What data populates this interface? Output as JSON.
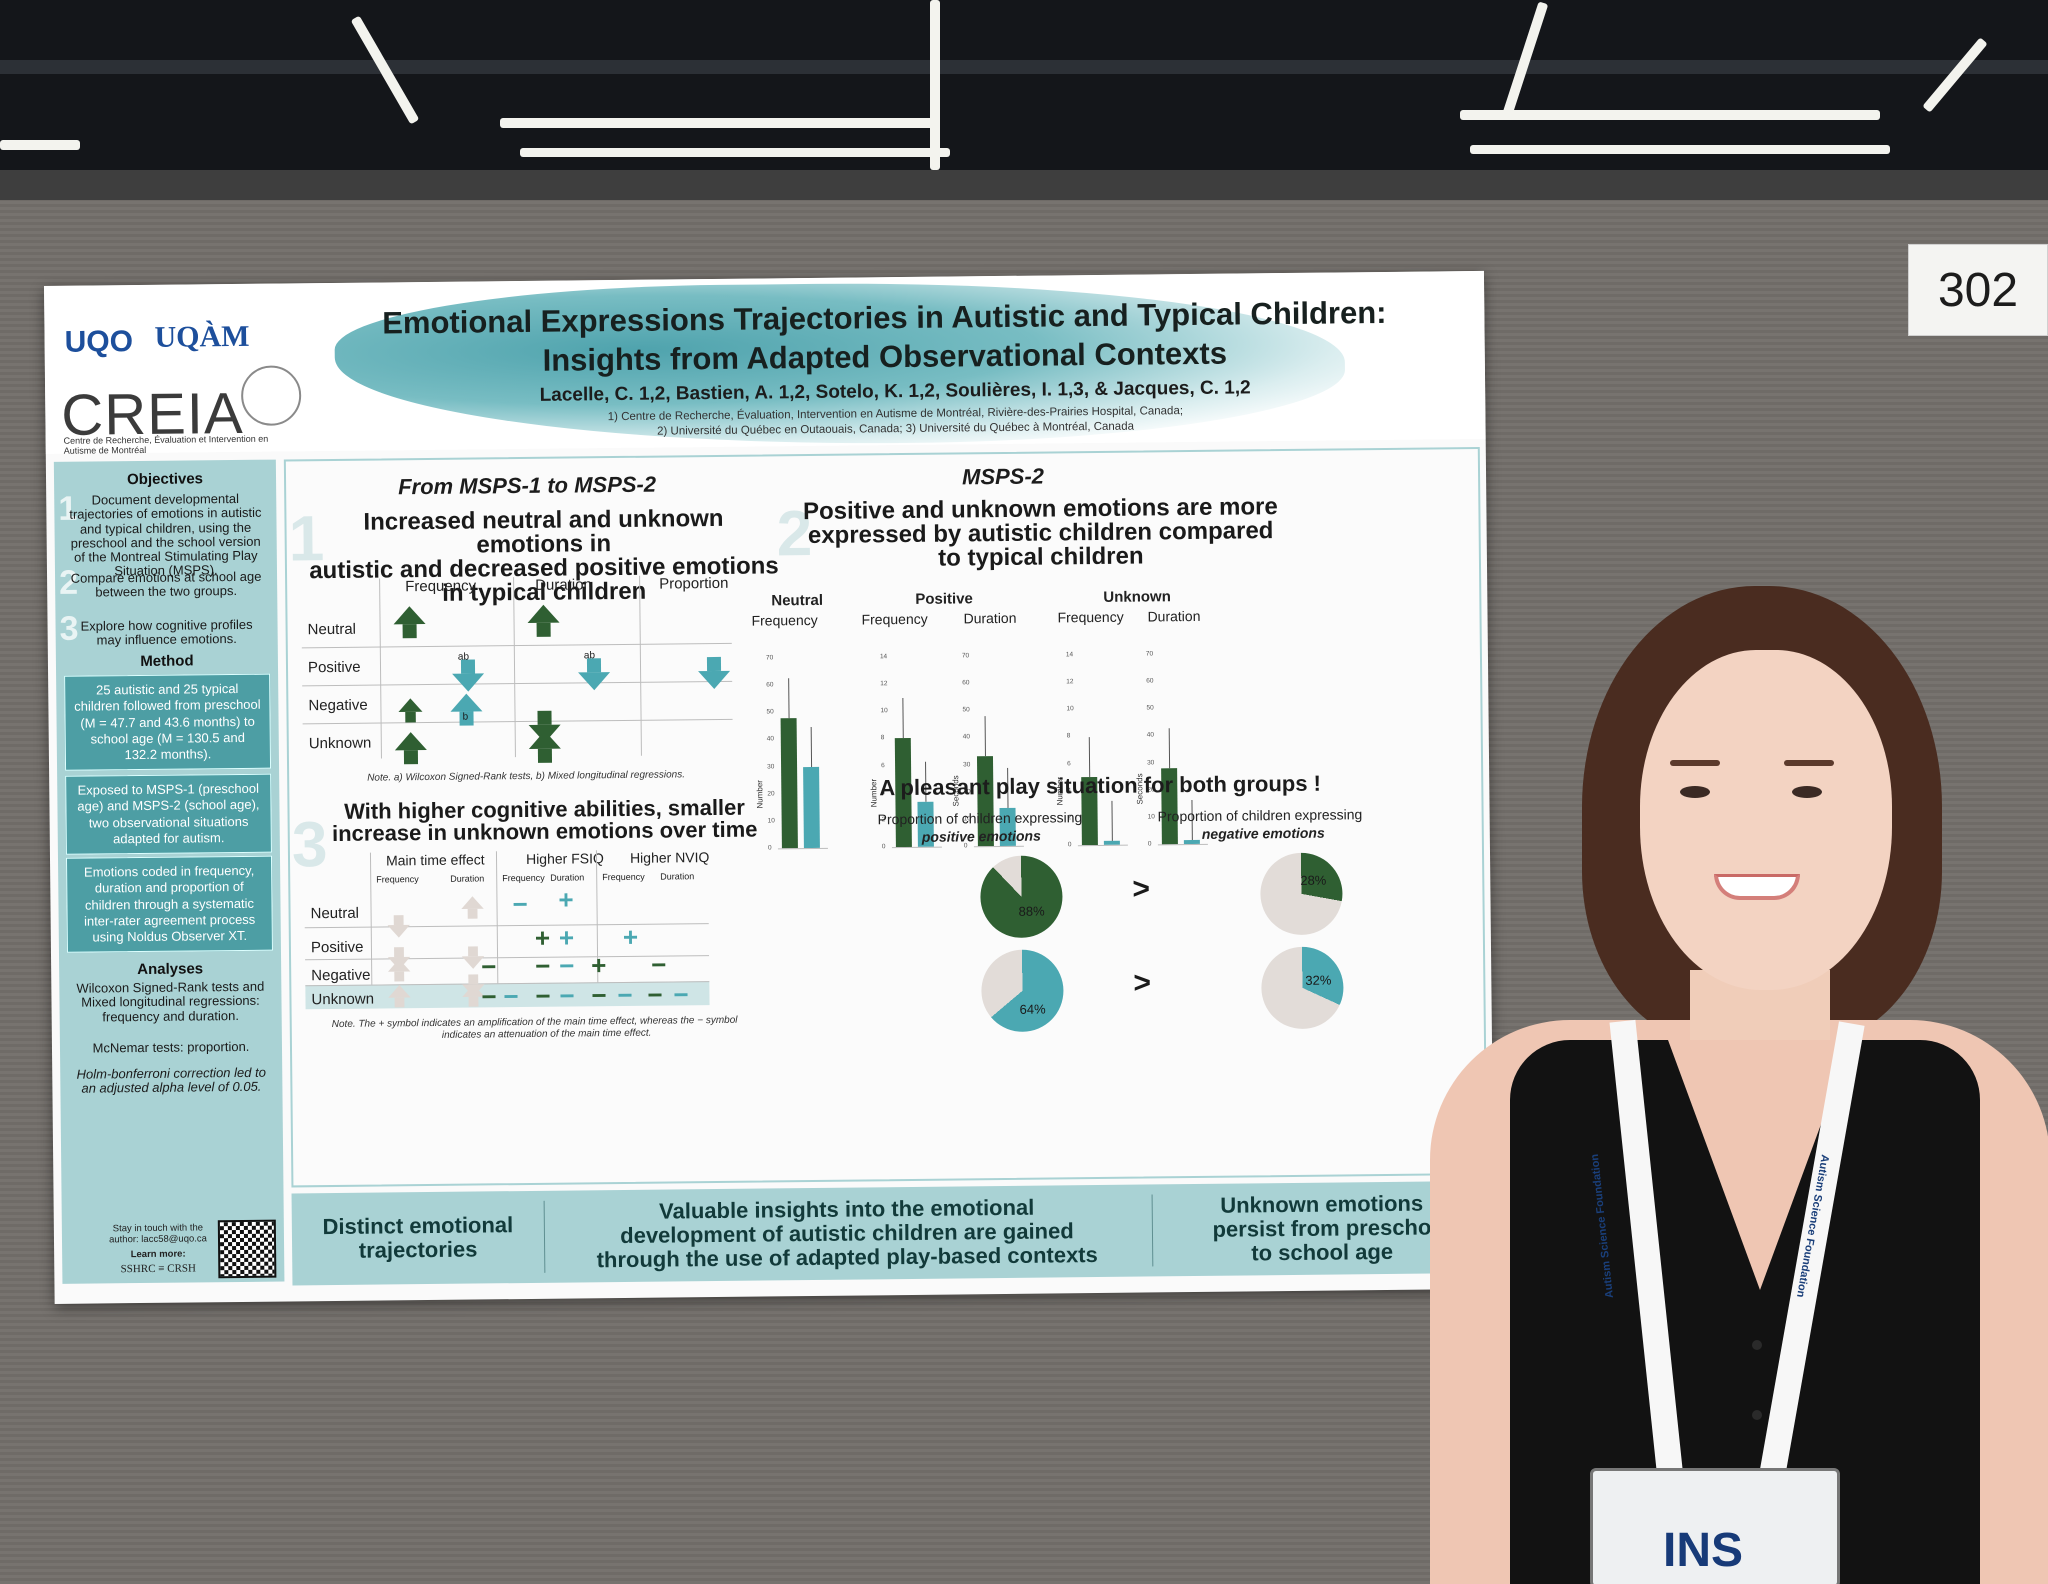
{
  "booth": {
    "number": "302"
  },
  "poster": {
    "logos": {
      "uqo": "UQO",
      "uqam": "UQÀM",
      "creia": "CREIA",
      "creia_sub": "Centre de Recherche, Évaluation et Intervention en Autisme de Montréal"
    },
    "title_line1": "Emotional Expressions Trajectories in Autistic and Typical Children:",
    "title_line2": "Insights from Adapted Observational Contexts",
    "authors": "Lacelle, C. 1,2, Bastien, A. 1,2, Sotelo, K. 1,2, Soulières, I. 1,3, & Jacques, C. 1,2",
    "affil_line1": "1) Centre de Recherche, Évaluation, Intervention en Autisme de Montréal, Rivière-des-Prairies Hospital, Canada;",
    "affil_line2": "2) Université du Québec en Outaouais, Canada; 3) Université du Québec à Montréal, Canada",
    "sidebar": {
      "objectives_h": "Objectives",
      "obj1": "Document developmental trajectories of emotions in autistic and typical children, using the preschool and the school version of the Montreal Stimulating Play Situation (MSPS).",
      "obj2": "Compare emotions at school age between the two groups.",
      "obj3": "Explore how cognitive profiles may influence emotions.",
      "method_h": "Method",
      "m1": "25 autistic and 25 typical children followed from preschool (M = 47.7 and 43.6 months) to school age (M = 130.5 and 132.2 months).",
      "m2": "Exposed to MSPS-1 (preschool age) and MSPS-2 (school age), two observational situations adapted for autism.",
      "m3": "Emotions coded in frequency, duration and proportion of children through a systematic inter-rater agreement process using Noldus Observer XT.",
      "analyses_h": "Analyses",
      "a1": "Wilcoxon Signed-Rank tests and Mixed longitudinal regressions: frequency and duration.",
      "a2": "McNemar tests: proportion.",
      "a3": "Holm-bonferroni correction led to an adjusted alpha level of 0.05.",
      "contact": "Stay in touch with the author: lacc58@uqo.ca",
      "learn": "Learn more:",
      "sshrc": "SSHRC ≡ CRSH"
    },
    "sec1": {
      "heading": "From MSPS-1 to MSPS-2",
      "claim_a": "Increased neutral and unknown emotions in",
      "claim_b": "autistic and decreased positive emotions",
      "claim_c": "in typical children",
      "cols": [
        "Frequency",
        "Duration",
        "Proportion"
      ],
      "rows": [
        "Neutral",
        "Positive",
        "Negative",
        "Unknown"
      ],
      "tag_a": "a",
      "tag_b": "b",
      "tag_ab": "ab",
      "note": "Note. a) Wilcoxon Signed-Rank tests, b) Mixed longitudinal regressions."
    },
    "sec2": {
      "heading": "MSPS-2",
      "claim_a": "Positive and unknown emotions are more",
      "claim_b": "expressed by autistic children compared",
      "claim_c": "to typical children"
    },
    "sec3": {
      "claim_a": "With higher cognitive abilities, smaller",
      "claim_b": "increase in unknown emotions over time",
      "groups": [
        "Main time effect",
        "Higher FSIQ",
        "Higher NVIQ"
      ],
      "sub": [
        "Frequency",
        "Duration"
      ],
      "rows": [
        "Neutral",
        "Positive",
        "Negative",
        "Unknown"
      ],
      "note_a": "Note. The + symbol indicates an amplification of the main time effect, whereas the − symbol",
      "note_b": "indicates an attenuation of the main time effect."
    },
    "sec4": {
      "heading": "A pleasant play situation for both groups !",
      "left_label_a": "Proportion of children expressing",
      "left_label_b": "positive emotions",
      "right_label_a": "Proportion of children expressing",
      "right_label_b": "negative emotions",
      "gt": ">"
    },
    "footer": {
      "left_a": "Distinct emotional",
      "left_b": "trajectories",
      "mid_a": "Valuable insights into the emotional",
      "mid_b": "development of autistic children are gained",
      "mid_c": "through the use of adapted play-based contexts",
      "right_a": "Unknown emotions",
      "right_b": "persist from prescho",
      "right_c": "to school age"
    }
  },
  "chart_data": [
    {
      "type": "bar",
      "title": "Neutral",
      "subtitle": "Frequency",
      "ylabel": "Number",
      "ylim": [
        0,
        70
      ],
      "ticks": [
        "0",
        "10",
        "20",
        "30",
        "40",
        "50",
        "60",
        "70"
      ],
      "values": [
        48,
        30
      ]
    },
    {
      "type": "bar",
      "title": "Positive",
      "subtitle": "Frequency",
      "ylabel": "Number",
      "ylim": [
        0,
        14
      ],
      "ticks": [
        "0",
        "2",
        "4",
        "6",
        "8",
        "10",
        "12",
        "14"
      ],
      "values": [
        8,
        3.3
      ]
    },
    {
      "type": "bar",
      "title": "",
      "subtitle": "Duration",
      "ylabel": "Seconds",
      "ylim": [
        0,
        70
      ],
      "ticks": [
        "0",
        "10",
        "20",
        "30",
        "40",
        "50",
        "60",
        "70"
      ],
      "values": [
        33,
        14
      ]
    },
    {
      "type": "bar",
      "title": "Unknown",
      "subtitle": "Frequency",
      "ylabel": "Number",
      "ylim": [
        0,
        14
      ],
      "ticks": [
        "0",
        "2",
        "4",
        "6",
        "8",
        "10",
        "12",
        "14"
      ],
      "values": [
        5,
        0.3
      ]
    },
    {
      "type": "bar",
      "title": "",
      "subtitle": "Duration",
      "ylabel": "Seconds",
      "ylim": [
        0,
        70
      ],
      "ticks": [
        "0",
        "10",
        "20",
        "30",
        "40",
        "50",
        "60",
        "70"
      ],
      "values": [
        28,
        1.5
      ]
    },
    {
      "type": "pie",
      "slices": [
        {
          "label": "88%",
          "value": 88,
          "color": "#2f5f32"
        },
        {
          "label": "",
          "value": 12,
          "color": "#e2dcd8"
        }
      ]
    },
    {
      "type": "pie",
      "slices": [
        {
          "label": "64%",
          "value": 64,
          "color": "#4ba8b2"
        },
        {
          "label": "",
          "value": 36,
          "color": "#e2dcd8"
        }
      ]
    },
    {
      "type": "pie",
      "slices": [
        {
          "label": "28%",
          "value": 28,
          "color": "#2f5f32"
        },
        {
          "label": "",
          "value": 72,
          "color": "#e2dcd8"
        }
      ]
    },
    {
      "type": "pie",
      "slices": [
        {
          "label": "32%",
          "value": 32,
          "color": "#4ba8b2"
        },
        {
          "label": "",
          "value": 68,
          "color": "#e2dcd8"
        }
      ]
    }
  ],
  "badge": {
    "lanyard_text": "Autism Science Foundation",
    "badge_text": "INS"
  }
}
